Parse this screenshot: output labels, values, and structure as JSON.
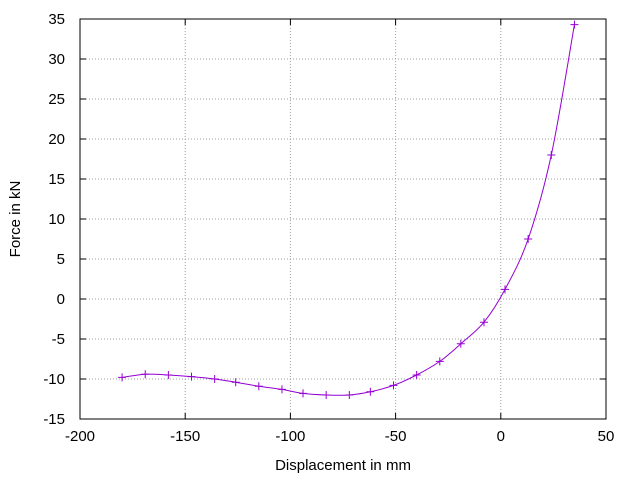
{
  "chart_data": {
    "type": "line",
    "title": "",
    "xlabel": "Displacement in mm",
    "ylabel": "Force in kN",
    "xlim": [
      -200,
      50
    ],
    "ylim": [
      -15,
      35
    ],
    "x_ticks": [
      -200,
      -150,
      -100,
      -50,
      0,
      50
    ],
    "y_ticks": [
      -15,
      -10,
      -5,
      0,
      5,
      10,
      15,
      20,
      25,
      30,
      35
    ],
    "x_tick_labels": [
      "-200",
      "-150",
      "-100",
      "-50",
      "0",
      "50"
    ],
    "y_tick_labels": [
      "-15",
      "-10",
      "-5",
      "0",
      "5",
      "10",
      "15",
      "20",
      "25",
      "30",
      "35"
    ],
    "grid": true,
    "legend": "none",
    "marker": "+",
    "series_color": "#9400d3",
    "series": [
      {
        "x": [
          -180,
          -169,
          -158,
          -147,
          -136,
          -126,
          -115,
          -104,
          -94,
          -83,
          -72,
          -62,
          -51,
          -40,
          -29,
          -19,
          -8,
          2,
          13,
          24,
          35
        ],
        "y": [
          -9.8,
          -9.4,
          -9.5,
          -9.7,
          -10.0,
          -10.4,
          -10.9,
          -11.3,
          -11.8,
          -12.0,
          -12.0,
          -11.6,
          -10.8,
          -9.5,
          -7.8,
          -5.6,
          -2.9,
          1.2,
          7.5,
          18.0,
          34.3
        ]
      }
    ]
  }
}
